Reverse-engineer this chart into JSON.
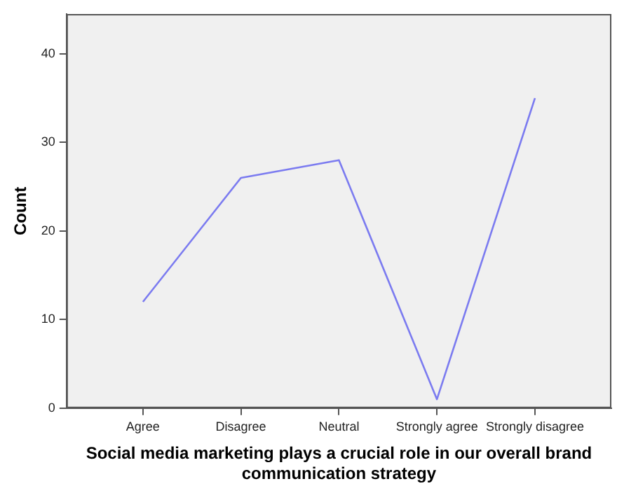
{
  "chart_data": {
    "type": "line",
    "categories": [
      "Agree",
      "Disagree",
      "Neutral",
      "Strongly agree",
      "Strongly disagree"
    ],
    "values": [
      12,
      26,
      28,
      1,
      35
    ],
    "color": "#7b7bf0",
    "xlabel": "Social media marketing plays a crucial role in our overall brand communication strategy",
    "ylabel": "Count",
    "ylim": [
      0,
      44.5
    ],
    "yticks": [
      0,
      10,
      20,
      30,
      40
    ],
    "grid": false,
    "legend": false,
    "marker": "none"
  }
}
